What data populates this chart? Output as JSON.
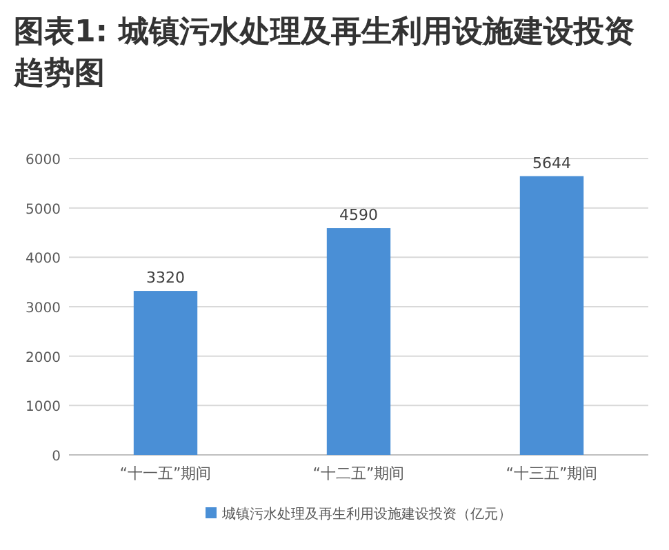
{
  "chart_data": {
    "type": "bar",
    "title": "图表1: 城镇污水处理及再生利用设施建设投资趋势图",
    "categories": [
      "“十一五”期间",
      "“十二五”期间",
      "“十三五”期间"
    ],
    "series": [
      {
        "name": "城镇污水处理及再生利用设施建设投资（亿元）",
        "color": "#4a8fd6",
        "values": [
          3320,
          4590,
          5644
        ]
      }
    ],
    "ylim": [
      0,
      6000
    ],
    "yticks": [
      0,
      1000,
      2000,
      3000,
      4000,
      5000,
      6000
    ],
    "grid": "y",
    "legend": "bottom",
    "data_labels": true
  }
}
